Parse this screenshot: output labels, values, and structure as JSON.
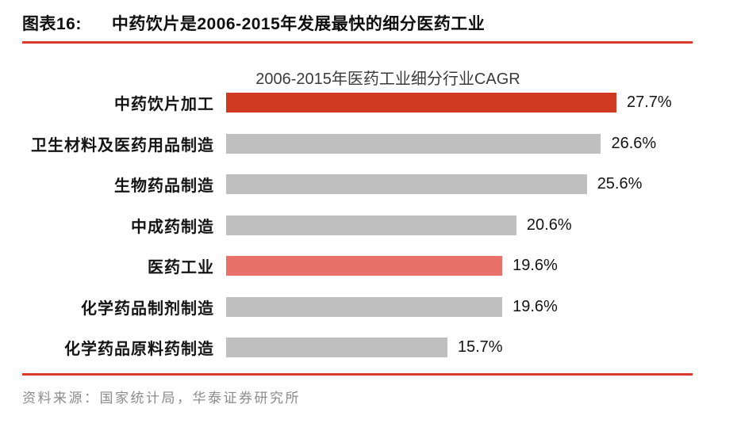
{
  "figure": {
    "label": "图表16:",
    "title": "中药饮片是2006-2015年发展最快的细分医药工业"
  },
  "chart_data": {
    "type": "bar",
    "orientation": "horizontal",
    "title": "2006-2015年医药工业细分行业CAGR",
    "categories": [
      "中药饮片加工",
      "卫生材料及医药用品制造",
      "生物药品制造",
      "中成药制造",
      "医药工业",
      "化学药品制剂制造",
      "化学药品原料药制造"
    ],
    "values": [
      27.7,
      26.6,
      25.6,
      20.6,
      19.6,
      19.6,
      15.7
    ],
    "value_labels": [
      "27.7%",
      "26.6%",
      "25.6%",
      "20.6%",
      "19.6%",
      "19.6%",
      "15.7%"
    ],
    "bar_colors": [
      "#d03a21",
      "#bfbfbf",
      "#bfbfbf",
      "#bfbfbf",
      "#e8716a",
      "#bfbfbf",
      "#bfbfbf"
    ],
    "xlim": [
      0,
      27.7
    ],
    "grid": false,
    "legend": false,
    "value_label_position": "end-of-bar",
    "highlight_note": "top bar dark red, 医药工业 bar salmon, others gray"
  },
  "colors": {
    "accent_rule_red": "#d93b2b",
    "bar_red": "#d03a21",
    "bar_salmon": "#e8716a",
    "bar_gray": "#bfbfbf",
    "source_gray": "#8b8b8b"
  },
  "source": {
    "text": "资料来源：国家统计局，华泰证券研究所"
  }
}
